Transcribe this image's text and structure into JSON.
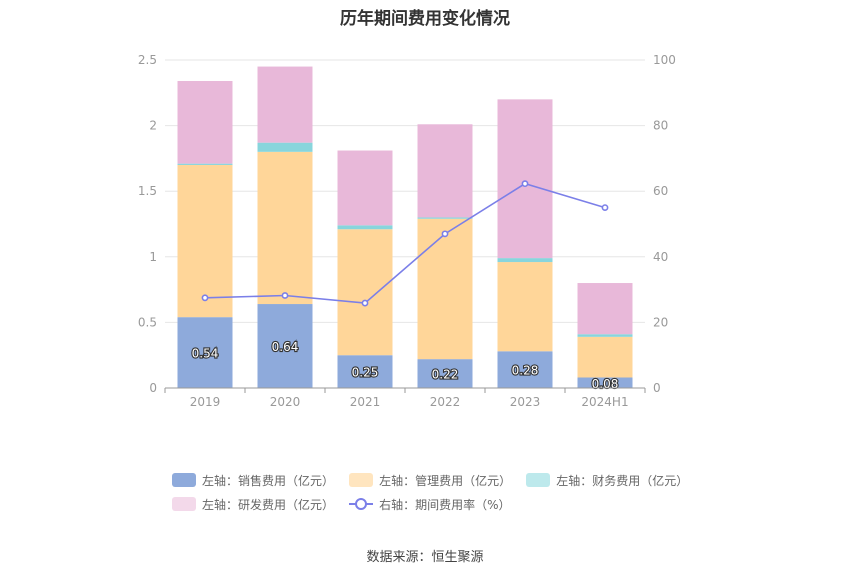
{
  "title": "历年期间费用变化情况",
  "source": "数据来源：恒生聚源",
  "chart_data": {
    "type": "bar",
    "stacked": true,
    "categories": [
      "2019",
      "2020",
      "2021",
      "2022",
      "2023",
      "2024H1"
    ],
    "y_left": {
      "range": [
        0,
        2.5
      ],
      "ticks": [
        "0",
        "0.5",
        "1",
        "1.5",
        "2",
        "2.5"
      ]
    },
    "y_right": {
      "range": [
        0,
        100
      ],
      "ticks": [
        "0",
        "20",
        "40",
        "60",
        "80",
        "100"
      ]
    },
    "series": [
      {
        "name": "左轴：销售费用（亿元）",
        "color": "#8eaadb",
        "axis": "left",
        "values": [
          0.54,
          0.64,
          0.25,
          0.22,
          0.28,
          0.08
        ],
        "labels": [
          "0.54",
          "0.64",
          "0.25",
          "0.22",
          "0.28",
          "0.08"
        ]
      },
      {
        "name": "左轴：管理费用（亿元）",
        "color": "#ffd699",
        "axis": "left",
        "values": [
          1.16,
          1.16,
          0.96,
          1.07,
          0.68,
          0.31
        ]
      },
      {
        "name": "左轴：财务费用（亿元）",
        "color": "#88d5dc",
        "axis": "left",
        "values": [
          0.01,
          0.07,
          0.03,
          0.01,
          0.03,
          0.02
        ]
      },
      {
        "name": "左轴：研发费用（亿元）",
        "color": "#e8b8d9",
        "axis": "left",
        "values": [
          0.63,
          0.58,
          0.57,
          0.71,
          1.21,
          0.39
        ]
      }
    ],
    "line": {
      "name": "右轴：期间费用率（%）",
      "color": "#7b7fe8",
      "axis": "right",
      "values": [
        27.5,
        28.2,
        25.9,
        47.0,
        62.3,
        55.0
      ]
    },
    "grid": true,
    "legend_position": "bottom"
  },
  "legend": {
    "items": [
      {
        "label": "左轴：销售费用（亿元）",
        "color": "#8eaadb"
      },
      {
        "label": "左轴：管理费用（亿元）",
        "color": "#ffe5bf"
      },
      {
        "label": "左轴：财务费用（亿元）",
        "color": "#bde9ec"
      },
      {
        "label": "左轴：研发费用（亿元）",
        "color": "#f3d9ea"
      },
      {
        "label": "右轴：期间费用率（%）",
        "color": "#7b7fe8"
      }
    ]
  }
}
